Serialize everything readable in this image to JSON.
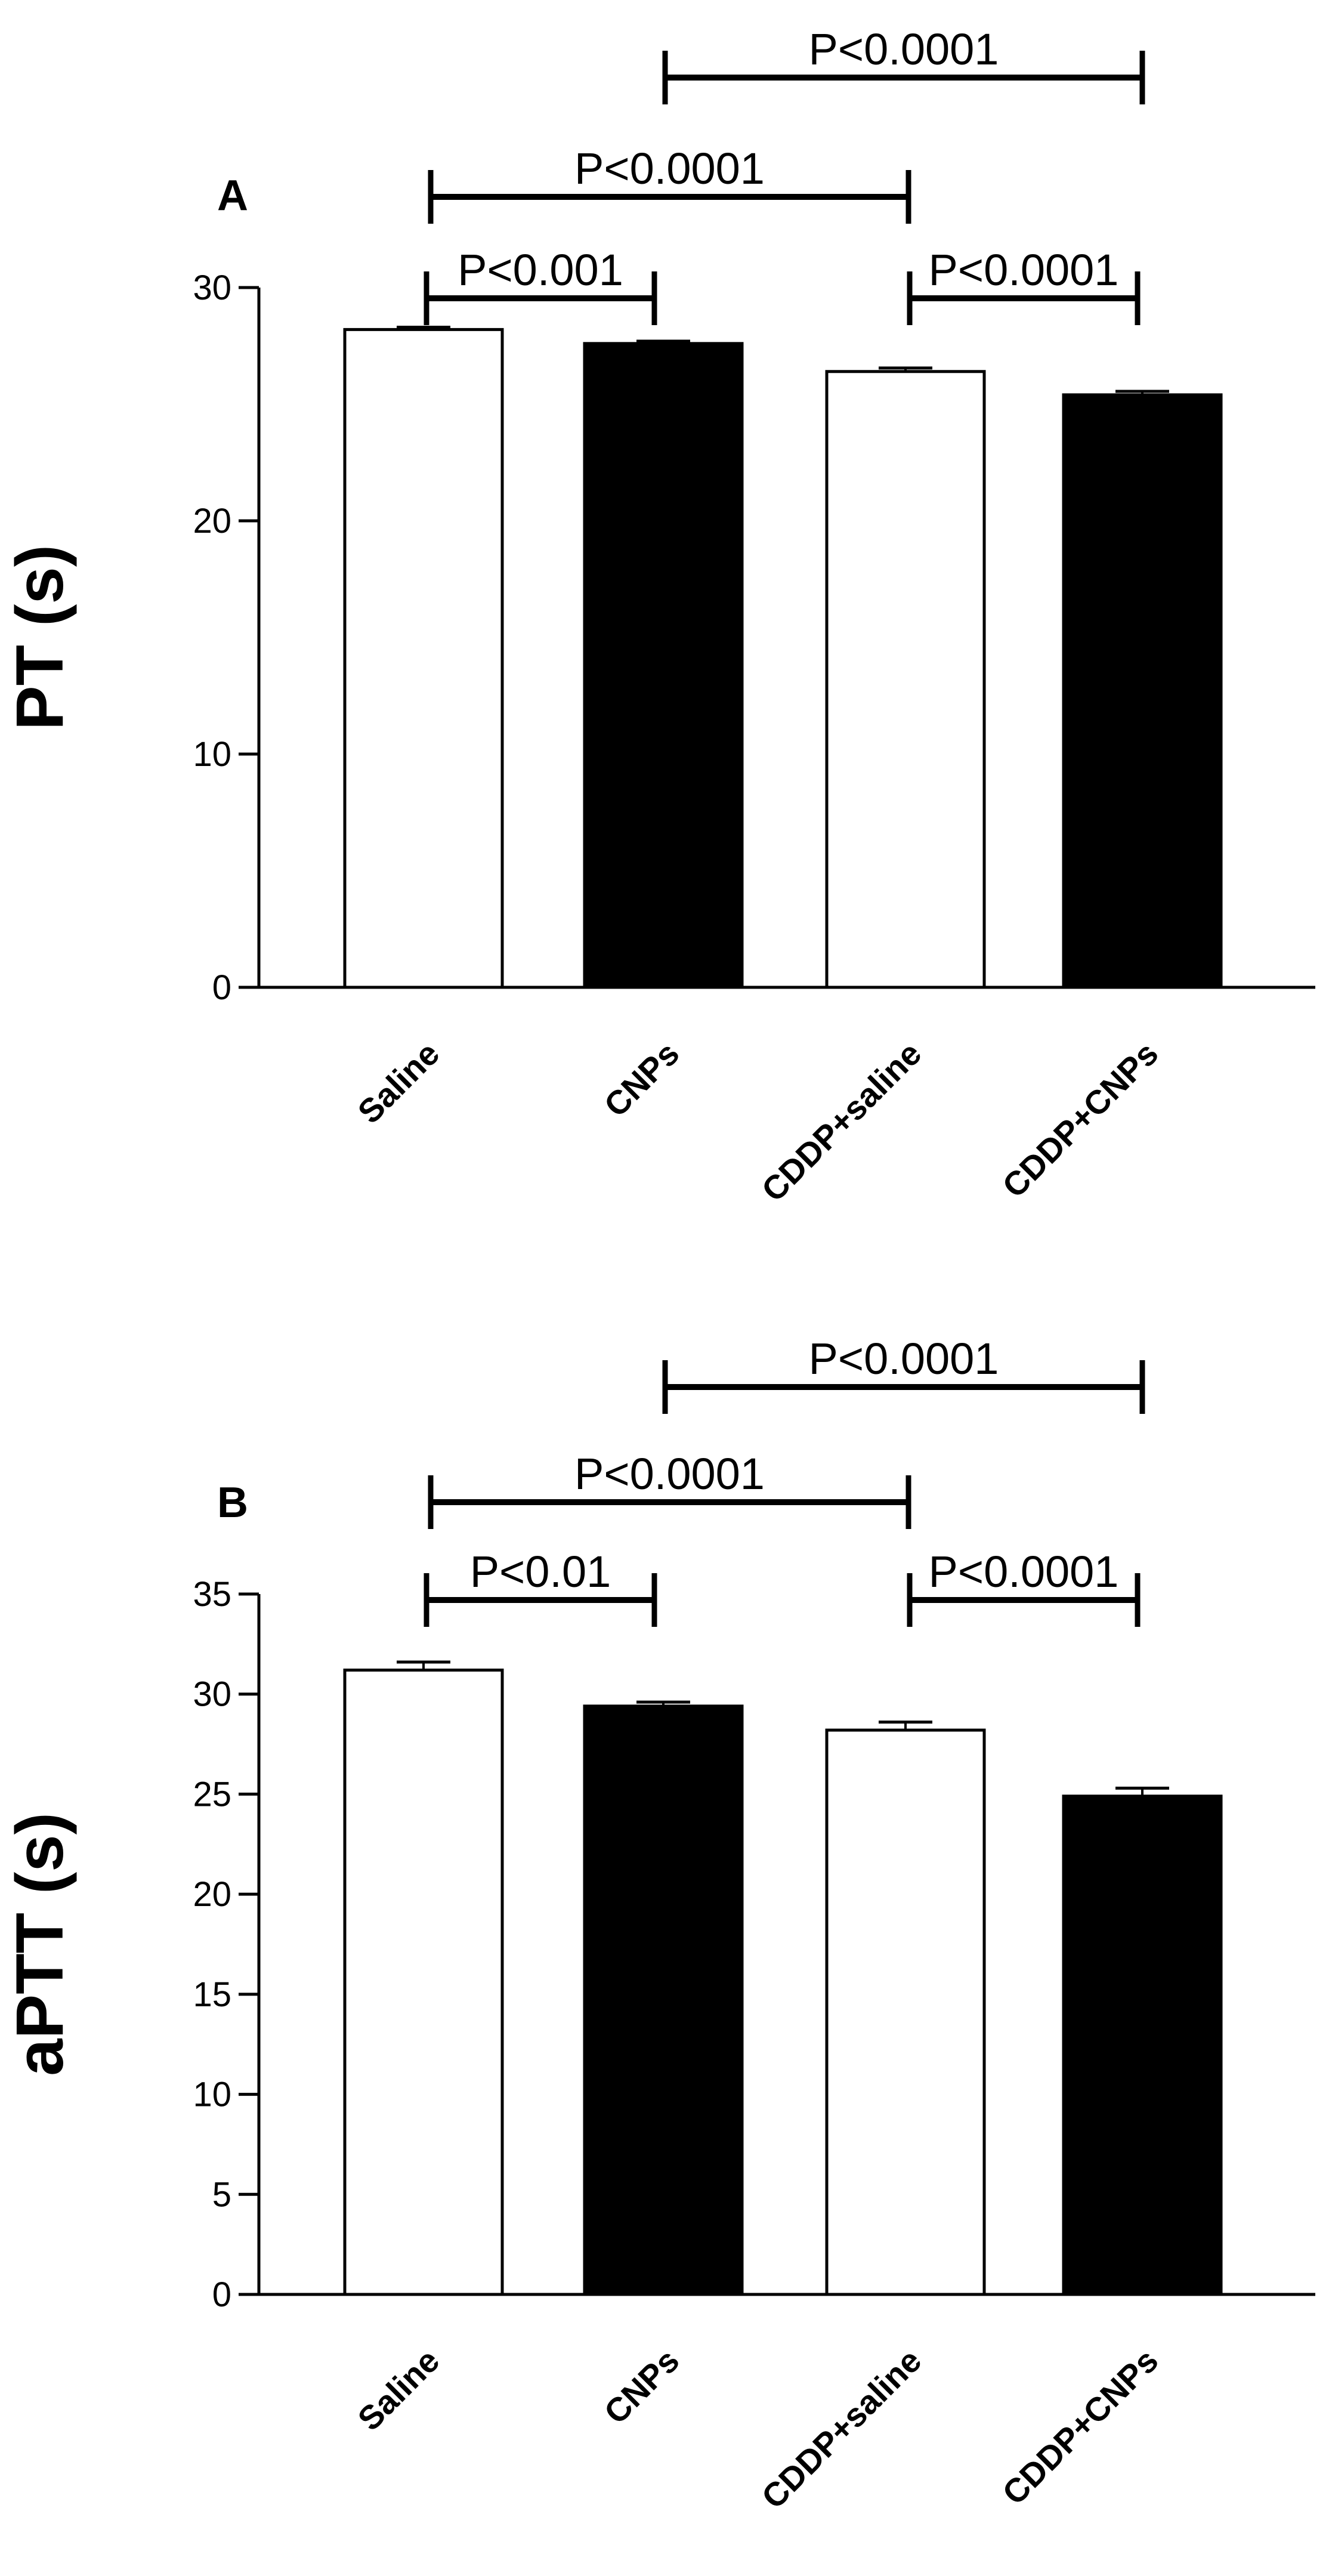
{
  "chart_data": [
    {
      "panel": "A",
      "type": "bar",
      "ylabel": "PT (s)",
      "ylim": [
        0,
        30
      ],
      "yticks": [
        0,
        10,
        20,
        30
      ],
      "categories": [
        "Saline",
        "CNPs",
        "CDDP+saline",
        "CDDP+CNPs"
      ],
      "values": [
        28.2,
        27.6,
        26.4,
        25.4
      ],
      "errors": [
        0.1,
        0.1,
        0.15,
        0.15
      ],
      "bar_fills": [
        "#ffffff",
        "#000000",
        "#ffffff",
        "#000000"
      ],
      "comparisons": [
        {
          "from": 0,
          "to": 1,
          "label": "P<0.001",
          "level": 1
        },
        {
          "from": 2,
          "to": 3,
          "label": "P<0.0001",
          "level": 1
        },
        {
          "from": 0,
          "to": 2,
          "label": "P<0.0001",
          "level": 2
        },
        {
          "from": 1,
          "to": 3,
          "label": "P<0.0001",
          "level": 3
        }
      ]
    },
    {
      "panel": "B",
      "type": "bar",
      "ylabel": "aPTT (s)",
      "ylim": [
        0,
        35
      ],
      "yticks": [
        0,
        5,
        10,
        15,
        20,
        25,
        30,
        35
      ],
      "categories": [
        "Saline",
        "CNPs",
        "CDDP+saline",
        "CDDP+CNPs"
      ],
      "values": [
        31.2,
        29.4,
        28.2,
        24.9
      ],
      "errors": [
        0.4,
        0.2,
        0.4,
        0.4
      ],
      "bar_fills": [
        "#ffffff",
        "#000000",
        "#ffffff",
        "#000000"
      ],
      "comparisons": [
        {
          "from": 0,
          "to": 1,
          "label": "P<0.01",
          "level": 1
        },
        {
          "from": 2,
          "to": 3,
          "label": "P<0.0001",
          "level": 1
        },
        {
          "from": 0,
          "to": 2,
          "label": "P<0.0001",
          "level": 2
        },
        {
          "from": 1,
          "to": 3,
          "label": "P<0.0001",
          "level": 3
        }
      ]
    }
  ]
}
